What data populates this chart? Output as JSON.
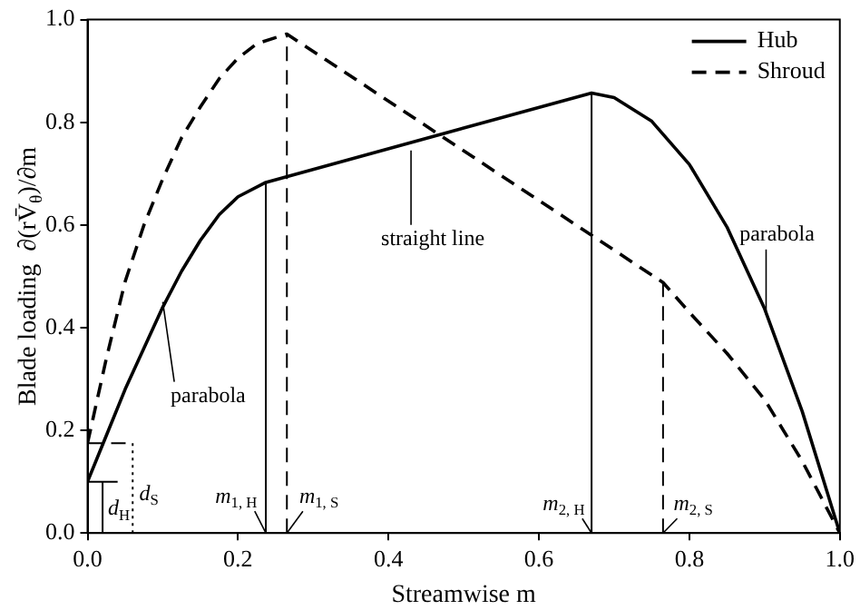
{
  "chart_data": {
    "type": "line",
    "xlabel": "Streamwise m",
    "ylabel": "Blade loading  ∂(rV̄$_{θ}$)/∂m",
    "xlim": [
      0,
      1
    ],
    "ylim": [
      0,
      1
    ],
    "xticks": [
      {
        "value": 0,
        "label": "0.0"
      },
      {
        "value": 0.2,
        "label": "0.2"
      },
      {
        "value": 0.4,
        "label": "0.4"
      },
      {
        "value": 0.6,
        "label": "0.6"
      },
      {
        "value": 0.8,
        "label": "0.8"
      },
      {
        "value": 1,
        "label": "1.0"
      }
    ],
    "yticks": [
      {
        "value": 0,
        "label": "0.0"
      },
      {
        "value": 0.2,
        "label": "0.2"
      },
      {
        "value": 0.4,
        "label": "0.4"
      },
      {
        "value": 0.6,
        "label": "0.6"
      },
      {
        "value": 0.8,
        "label": "0.8"
      },
      {
        "value": 1,
        "label": "1.0"
      }
    ],
    "legend": "top right",
    "grid": false,
    "marker": "none",
    "series": [
      {
        "name": "Hub",
        "color": "#000000",
        "line_style": "solid",
        "x": [
          0,
          0.025,
          0.05,
          0.075,
          0.1,
          0.125,
          0.15,
          0.175,
          0.2,
          0.237,
          0.67,
          0.7,
          0.75,
          0.8,
          0.85,
          0.9,
          0.95,
          1
        ],
        "values": [
          0.1,
          0.19,
          0.28,
          0.36,
          0.44,
          0.51,
          0.57,
          0.62,
          0.655,
          0.683,
          0.857,
          0.848,
          0.802,
          0.718,
          0.596,
          0.437,
          0.237,
          0
        ]
      },
      {
        "name": "Shroud",
        "color": "#000000",
        "line_style": "dashed",
        "x": [
          0,
          0.025,
          0.05,
          0.075,
          0.1,
          0.125,
          0.15,
          0.175,
          0.2,
          0.225,
          0.265,
          0.765,
          0.8,
          0.85,
          0.9,
          0.95,
          1
        ],
        "values": [
          0.175,
          0.34,
          0.49,
          0.6,
          0.69,
          0.77,
          0.83,
          0.885,
          0.925,
          0.953,
          0.972,
          0.488,
          0.43,
          0.35,
          0.26,
          0.14,
          0
        ]
      },
      {
        "color": "#000000",
        "line_style": "solid",
        "x": [
          0.237,
          0.237
        ],
        "values": [
          0,
          0.683
        ]
      },
      {
        "color": "#000000",
        "line_style": "dashed",
        "x": [
          0.265,
          0.265
        ],
        "values": [
          0,
          0.972
        ]
      },
      {
        "color": "#000000",
        "line_style": "solid",
        "x": [
          0.67,
          0.67
        ],
        "values": [
          0,
          0.857
        ]
      },
      {
        "color": "#000000",
        "line_style": "dashed",
        "x": [
          0.765,
          0.765
        ],
        "values": [
          0,
          0.488
        ]
      },
      {
        "color": "#000000",
        "line_style": "dashed",
        "x": [
          0,
          0.06
        ],
        "values": [
          0.175,
          0.175
        ]
      },
      {
        "color": "#000000",
        "line_style": "dotted",
        "x": [
          0.06,
          0.06
        ],
        "values": [
          0,
          0.175
        ]
      },
      {
        "color": "#000000",
        "line_style": "solid",
        "x": [
          0,
          0.04
        ],
        "values": [
          0.1,
          0.1
        ]
      },
      {
        "color": "#000000",
        "line_style": "solid",
        "x": [
          0.02,
          0.02
        ],
        "values": [
          0,
          0.1
        ]
      }
    ],
    "annotations": [
      {
        "text": "parabola",
        "x": 0.1,
        "y": 0.45
      },
      {
        "text": "straight line",
        "x": 0.43,
        "y": 0.745
      },
      {
        "text": "parabola",
        "x": 0.902,
        "y": 0.425
      },
      {
        "text": "m$_{1, H}$",
        "x": 0.237,
        "y": 0
      },
      {
        "text": "m$_{1, S}$",
        "x": 0.265,
        "y": 0
      },
      {
        "text": "m$_{2, H}$",
        "x": 0.67,
        "y": 0
      },
      {
        "text": "m$_{2, S}$",
        "x": 0.765,
        "y": 0
      },
      {
        "text": "d$_{S}$",
        "x": 0.06,
        "y": 0.09
      },
      {
        "text": "d$_{H}$",
        "x": 0.02,
        "y": 0.05
      }
    ]
  }
}
